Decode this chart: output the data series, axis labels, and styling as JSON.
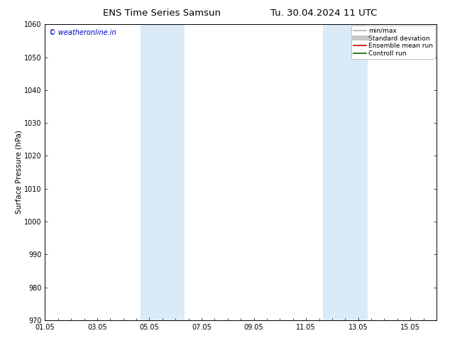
{
  "title_left": "ENS Time Series Samsun",
  "title_right": "Tu. 30.04.2024 11 UTC",
  "ylabel": "Surface Pressure (hPa)",
  "ylim": [
    970,
    1060
  ],
  "yticks": [
    970,
    980,
    990,
    1000,
    1010,
    1020,
    1030,
    1040,
    1050,
    1060
  ],
  "xlim": [
    0,
    15
  ],
  "xtick_labels": [
    "01.05",
    "03.05",
    "05.05",
    "07.05",
    "09.05",
    "11.05",
    "13.05",
    "15.05"
  ],
  "xtick_positions": [
    0,
    2,
    4,
    6,
    8,
    10,
    12,
    14
  ],
  "shaded_bands": [
    {
      "x_start": 3.65,
      "x_end": 5.35
    },
    {
      "x_start": 10.65,
      "x_end": 12.35
    }
  ],
  "shaded_color": "#daeaf6",
  "watermark_text": "© weatheronline.in",
  "watermark_color": "#0000cc",
  "background_color": "#ffffff",
  "legend_items": [
    {
      "label": "min/max",
      "color": "#b0b0b0",
      "lw": 1.2,
      "linestyle": "-"
    },
    {
      "label": "Standard deviation",
      "color": "#c8c8c8",
      "lw": 5,
      "linestyle": "-"
    },
    {
      "label": "Ensemble mean run",
      "color": "#cc0000",
      "lw": 1.2,
      "linestyle": "-"
    },
    {
      "label": "Controll run",
      "color": "#006600",
      "lw": 1.2,
      "linestyle": "-"
    }
  ],
  "title_fontsize": 9.5,
  "ylabel_fontsize": 7.5,
  "tick_fontsize": 7,
  "legend_fontsize": 6.5,
  "watermark_fontsize": 7
}
